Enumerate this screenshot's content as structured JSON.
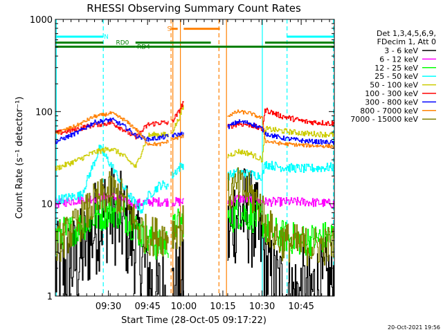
{
  "chart_data": {
    "type": "line",
    "title": "RHESSI Observing Summary Count Rates",
    "xlabel": "Start Time (28-Oct-05 09:17:22)",
    "ylabel": "Count Rate (s⁻¹ detector⁻¹)",
    "yscale": "log",
    "ylim": [
      1,
      1000
    ],
    "xlim_min": [
      17.4,
      110
    ],
    "y_ticks": [
      {
        "v": 1,
        "label": "1"
      },
      {
        "v": 10,
        "label": "10"
      },
      {
        "v": 100,
        "label": "100"
      },
      {
        "v": 1000,
        "label": "1000"
      }
    ],
    "x_ticks": [
      {
        "t": 35,
        "label": "09:30"
      },
      {
        "t": 48,
        "label": "09:45"
      },
      {
        "t": 60,
        "label": "10:00"
      },
      {
        "t": 73,
        "label": "10:15"
      },
      {
        "t": 86,
        "label": "10:30"
      },
      {
        "t": 99,
        "label": "10:45"
      }
    ],
    "legend": {
      "placement": "right",
      "header": [
        "Det 1,3,4,5,6,9,",
        "FDecim 1, Att 0"
      ],
      "entries": [
        {
          "label": "3 - 6 keV",
          "color": "#000000"
        },
        {
          "label": "6 - 12 keV",
          "color": "#ff00ff"
        },
        {
          "label": "12 - 25 keV",
          "color": "#00ff00"
        },
        {
          "label": "25 - 50 keV",
          "color": "#00ffff"
        },
        {
          "label": "50 - 100 keV",
          "color": "#cccc00"
        },
        {
          "label": "100 - 300 keV",
          "color": "#ff0000"
        },
        {
          "label": "300 - 800 keV",
          "color": "#0000ff"
        },
        {
          "label": "800 - 7000 keV",
          "color": "#ff8000"
        },
        {
          "label": "7000 - 15000 keV",
          "color": "#808000"
        }
      ]
    },
    "flags": [
      {
        "name": "N",
        "color": "#00ffff",
        "y": 650,
        "segments": [
          [
            17.4,
            33.3
          ],
          [
            94.2,
            110
          ]
        ]
      },
      {
        "name": "RD0",
        "color": "#008000",
        "y": 560,
        "segments": [
          [
            17.4,
            33.3
          ],
          [
            44,
            69
          ],
          [
            87,
            110
          ]
        ]
      },
      {
        "name": "RD4",
        "color": "#008000",
        "y": 505,
        "segments": [
          [
            17.4,
            44
          ],
          [
            44,
            69
          ],
          [
            69,
            86
          ],
          [
            86,
            110
          ]
        ]
      },
      {
        "name": "S",
        "color": "#ff8000",
        "y": 790,
        "segments": [
          [
            56,
            58
          ],
          [
            60,
            72
          ]
        ]
      }
    ],
    "vlines": [
      {
        "t": 17.7,
        "color": "#00ffff",
        "style": "solid"
      },
      {
        "t": 33.3,
        "color": "#00ffff",
        "style": "dashed"
      },
      {
        "t": 55.8,
        "color": "#ff8000",
        "style": "dashed"
      },
      {
        "t": 56.4,
        "color": "#ff8000",
        "style": "solid"
      },
      {
        "t": 58.9,
        "color": "#ff8000",
        "style": "solid"
      },
      {
        "t": 71.7,
        "color": "#ff8000",
        "style": "dashed"
      },
      {
        "t": 74.2,
        "color": "#ff8000",
        "style": "solid"
      },
      {
        "t": 86.1,
        "color": "#00ffff",
        "style": "solid"
      },
      {
        "t": 94.3,
        "color": "#00ffff",
        "style": "dashed"
      },
      {
        "t": 109.7,
        "color": "#00ffff",
        "style": "dashed"
      }
    ],
    "series": [
      {
        "name": "3 - 6 keV",
        "color": "#000000",
        "noise": 0.55,
        "segments": [
          {
            "x": [
              17.4,
              25,
              29,
              33,
              36,
              40,
              44,
              48,
              50,
              51.5,
              52.5,
              53,
              54,
              55
            ],
            "y": [
              1.8,
              2.4,
              4.5,
              7.5,
              8.0,
              6.0,
              3.5,
              1.8,
              1.0,
              1.0,
              1.0,
              1.0,
              1.0,
              1.0
            ]
          },
          {
            "x": [
              56,
              57,
              58,
              59,
              60
            ],
            "y": [
              1.0,
              1.5,
              1.0,
              1.0,
              2.5
            ]
          },
          {
            "x": [
              74.5,
              77,
              80,
              83,
              86,
              87,
              90,
              95,
              100,
              105,
              110
            ],
            "y": [
              4.0,
              7.5,
              8.0,
              6.5,
              3.5,
              2.0,
              1.3,
              1.0,
              1.0,
              1.2,
              1.4
            ]
          }
        ]
      },
      {
        "name": "6 - 12 keV",
        "color": "#ff00ff",
        "noise": 0.05,
        "segments": [
          {
            "x": [
              17.4,
              25,
              30,
              36,
              40,
              44,
              48,
              52,
              55
            ],
            "y": [
              10.0,
              11.0,
              11.5,
              12.0,
              11.0,
              10.0,
              10.5,
              10.5,
              10.5
            ]
          },
          {
            "x": [
              56,
              58,
              60
            ],
            "y": [
              10.5,
              10.5,
              10.5
            ]
          },
          {
            "x": [
              74.5,
              78,
              82,
              86,
              87,
              92,
              100,
              110
            ],
            "y": [
              10.5,
              11.5,
              11.0,
              10.5,
              10.5,
              10.5,
              10.5,
              10.0
            ]
          }
        ]
      },
      {
        "name": "12 - 25 keV",
        "color": "#00ff00",
        "noise": 0.18,
        "segments": [
          {
            "x": [
              17.4,
              25,
              30,
              36,
              40,
              44,
              48,
              52,
              55
            ],
            "y": [
              4.5,
              5.5,
              7.0,
              8.5,
              7.5,
              5.5,
              4.0,
              3.5,
              3.8
            ]
          },
          {
            "x": [
              56,
              58,
              60
            ],
            "y": [
              5.0,
              6.0,
              6.5
            ]
          },
          {
            "x": [
              74.5,
              78,
              82,
              86,
              87,
              92,
              100,
              110
            ],
            "y": [
              6.5,
              8.0,
              7.5,
              6.5,
              5.5,
              4.5,
              4.0,
              4.5
            ]
          }
        ]
      },
      {
        "name": "25 - 50 keV",
        "color": "#00ffff",
        "noise": 0.05,
        "segments": [
          {
            "x": [
              17.4,
              26,
              30,
              32,
              36,
              40,
              44,
              46,
              48,
              52,
              55
            ],
            "y": [
              11.0,
              12.5,
              27.0,
              40.0,
              26.0,
              15.0,
              10.0,
              8.5,
              12.0,
              16.0,
              16.0
            ]
          },
          {
            "x": [
              56,
              58,
              60
            ],
            "y": [
              20.0,
              24.0,
              27.0
            ]
          },
          {
            "x": [
              74.5,
              78,
              82,
              86,
              87,
              92,
              100,
              110
            ],
            "y": [
              20.0,
              22.0,
              21.0,
              20.0,
              27.0,
              25.0,
              24.0,
              25.0
            ]
          }
        ]
      },
      {
        "name": "50 - 100 keV",
        "color": "#cccc00",
        "noise": 0.03,
        "segments": [
          {
            "x": [
              17.4,
              25,
              30,
              36,
              40,
              44,
              48,
              52,
              55
            ],
            "y": [
              24.0,
              30.0,
              36.0,
              40.0,
              33.0,
              25.0,
              55.0,
              57.0,
              55.0
            ]
          },
          {
            "x": [
              56,
              58,
              60
            ],
            "y": [
              60.0,
              80.0,
              115.0
            ]
          },
          {
            "x": [
              74.5,
              78,
              82,
              86,
              87,
              92,
              100,
              110
            ],
            "y": [
              33.0,
              37.0,
              35.0,
              30.0,
              65.0,
              62.0,
              58.0,
              56.0
            ]
          }
        ]
      },
      {
        "name": "100 - 300 keV",
        "color": "#ff0000",
        "noise": 0.03,
        "segments": [
          {
            "x": [
              17.4,
              25,
              30,
              36,
              40,
              44,
              48,
              52,
              55
            ],
            "y": [
              58.0,
              65.0,
              72.0,
              76.0,
              64.0,
              52.0,
              72.0,
              76.0,
              75.0
            ]
          },
          {
            "x": [
              56,
              58,
              60
            ],
            "y": [
              78.0,
              95.0,
              130.0
            ]
          },
          {
            "x": [
              74.5,
              78,
              82,
              86,
              87,
              92,
              100,
              110
            ],
            "y": [
              68.0,
              74.0,
              72.0,
              64.0,
              105.0,
              90.0,
              78.0,
              74.0
            ]
          }
        ]
      },
      {
        "name": "300 - 800 keV",
        "color": "#0000ff",
        "noise": 0.025,
        "segments": [
          {
            "x": [
              17.4,
              25,
              30,
              36,
              40,
              44,
              48,
              52,
              55
            ],
            "y": [
              47.0,
              60.0,
              76.0,
              82.0,
              70.0,
              55.0,
              50.0,
              52.0,
              54.0
            ]
          },
          {
            "x": [
              56,
              58,
              60
            ],
            "y": [
              55.0,
              56.0,
              58.0
            ]
          },
          {
            "x": [
              74.5,
              78,
              82,
              86,
              87,
              92,
              100,
              110
            ],
            "y": [
              68.0,
              78.0,
              75.0,
              65.0,
              58.0,
              52.0,
              48.0,
              46.0
            ]
          }
        ]
      },
      {
        "name": "800 - 7000 keV",
        "color": "#ff8000",
        "noise": 0.02,
        "segments": [
          {
            "x": [
              17.4,
              25,
              30,
              36,
              40,
              44,
              48,
              52,
              55
            ],
            "y": [
              58.0,
              72.0,
              88.0,
              96.0,
              82.0,
              65.0,
              45.0,
              44.0,
              48.0
            ]
          },
          {
            "x": [
              56,
              58,
              60
            ],
            "y": [
              50.0,
              52.0,
              54.0
            ]
          },
          {
            "x": [
              74.5,
              78,
              82,
              86,
              87,
              92,
              100,
              110
            ],
            "y": [
              90.0,
              100.0,
              96.0,
              84.0,
              48.0,
              45.0,
              43.0,
              42.0
            ]
          }
        ]
      },
      {
        "name": "7000 - 15000 keV",
        "color": "#808000",
        "noise": 0.22,
        "segments": [
          {
            "x": [
              17.4,
              25,
              30,
              36,
              40,
              44,
              48,
              52,
              55
            ],
            "y": [
              3.5,
              6.0,
              10.0,
              14.0,
              11.0,
              6.0,
              4.5,
              4.5,
              4.5
            ]
          },
          {
            "x": [
              56,
              58,
              60
            ],
            "y": [
              5.0,
              5.5,
              6.0
            ]
          },
          {
            "x": [
              74.5,
              78,
              82,
              86,
              87,
              92,
              100,
              110
            ],
            "y": [
              13.0,
              15.0,
              13.0,
              9.0,
              6.0,
              4.0,
              3.5,
              3.5
            ]
          }
        ]
      }
    ]
  },
  "footer_date": "20-Oct-2021 19:56"
}
